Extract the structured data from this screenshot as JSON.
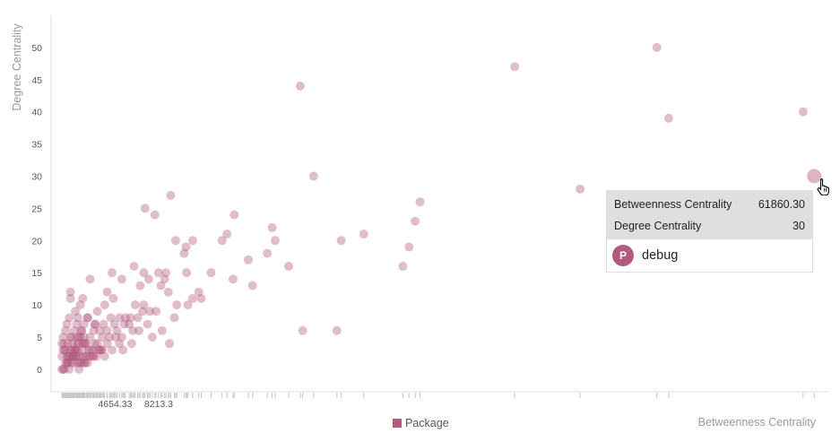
{
  "chart_data": {
    "type": "scatter",
    "xlabel": "Betweenness Centrality",
    "ylabel": "Degree Centrality",
    "xlim": [
      0,
      62500
    ],
    "ylim": [
      -3.5,
      55
    ],
    "y_ticks": [
      0,
      5,
      10,
      15,
      20,
      25,
      30,
      35,
      40,
      45,
      50
    ],
    "x_tick_labels": [
      "8213.3",
      "4654.33"
    ],
    "x_tick_values": [
      8213.3,
      4654.33
    ],
    "grid": false,
    "legend": {
      "position": "bottom-center",
      "entries": [
        {
          "name": "Package",
          "color": "#b25b7e"
        }
      ]
    },
    "series": [
      {
        "name": "Package",
        "color": "#b25b7e",
        "x": [
          61860.3,
          48980,
          49950,
          60950,
          37350,
          42700,
          19800,
          9200,
          7900,
          7100,
          13800,
          20900,
          29600,
          29200,
          28700,
          28200,
          25000,
          17500,
          17100,
          17750,
          18850,
          23150,
          20000,
          22800,
          13400,
          14400,
          15550,
          9600,
          11000,
          10300,
          10450,
          8800,
          8200,
          15900,
          8700,
          7400,
          1000,
          4000,
          4400,
          5200,
          6200,
          6700,
          7000,
          8400,
          9700,
          11700,
          12500,
          11500,
          11000,
          10600,
          14300,
          9500,
          6900,
          5800,
          5900,
          8000,
          10500,
          3800,
          4300,
          5500,
          6300,
          7300,
          9000,
          6100,
          4000,
          3200,
          2400,
          2000,
          2600,
          1800,
          1600,
          3000,
          3600,
          4800,
          5000,
          5400,
          6600,
          9100,
          7700,
          600,
          700,
          900,
          1100,
          1300,
          1500,
          1700,
          1900,
          2100,
          300,
          400,
          500,
          800,
          1000,
          1200,
          1400,
          1600,
          1800,
          2000,
          2200,
          600,
          800,
          1000,
          1200,
          1400,
          1600,
          2000,
          2400,
          2800,
          3200,
          3600,
          4000,
          4400,
          5000,
          700,
          1100,
          1500,
          1900,
          2300,
          2700,
          3100,
          3500,
          500,
          900,
          1300,
          1700,
          2100,
          2500,
          2900,
          3300,
          3800,
          400,
          800,
          1200,
          1600,
          2000,
          2400,
          2800,
          3400,
          600,
          1000,
          1400,
          1800,
          2200,
          2600,
          300,
          700,
          1100,
          1500,
          1900,
          300,
          500,
          900,
          1300,
          1700,
          2100,
          400,
          800,
          1200,
          1600,
          2200,
          2600,
          3000,
          3400,
          4200,
          4600,
          5200,
          2100,
          2900,
          3700,
          6500,
          7500,
          8500,
          4700,
          5300,
          6000,
          7000,
          1000,
          1400,
          2400,
          3000,
          4500
        ],
        "y": [
          30,
          50,
          39,
          40,
          47,
          28,
          44,
          27,
          24,
          25,
          21,
          30,
          26,
          23,
          19,
          16,
          21,
          22,
          18,
          20,
          16,
          20,
          6,
          6,
          20,
          24,
          17,
          20,
          20,
          18,
          19,
          15,
          15,
          13,
          14,
          14,
          11,
          12,
          15,
          14,
          16,
          13,
          15,
          13,
          10,
          11,
          15,
          12,
          11,
          10,
          14,
          8,
          9,
          7,
          8,
          9,
          15,
          10,
          8,
          8,
          10,
          7,
          12,
          6,
          6,
          9,
          8,
          11,
          14,
          10,
          8,
          7,
          5,
          6,
          8,
          7,
          6,
          4,
          5,
          6,
          7,
          8,
          5,
          6,
          7,
          5,
          6,
          5,
          4,
          5,
          3,
          4,
          5,
          4,
          3,
          4,
          5,
          4,
          2,
          3,
          2,
          3,
          2,
          3,
          4,
          3,
          2,
          3,
          4,
          3,
          4,
          3,
          4,
          2,
          3,
          5,
          6,
          4,
          3,
          2,
          3,
          4,
          2,
          3,
          2,
          4,
          3,
          2,
          3,
          2,
          3,
          1,
          2,
          1,
          2,
          1,
          2,
          3,
          1,
          2,
          2,
          1,
          1,
          2,
          2,
          1,
          1,
          2,
          1,
          0,
          0,
          0,
          1,
          0,
          1,
          0,
          1,
          2,
          3,
          4,
          5,
          4,
          6,
          5,
          7,
          5,
          7,
          6,
          7,
          8,
          9,
          6,
          5,
          3,
          4,
          10,
          12,
          9,
          8,
          7,
          11
        ]
      }
    ],
    "tooltip": {
      "rows": [
        {
          "label": "Betweenness Centrality",
          "value": "61860.30"
        },
        {
          "label": "Degree Centrality",
          "value": "30"
        }
      ],
      "badge": "P",
      "node": "debug"
    }
  }
}
